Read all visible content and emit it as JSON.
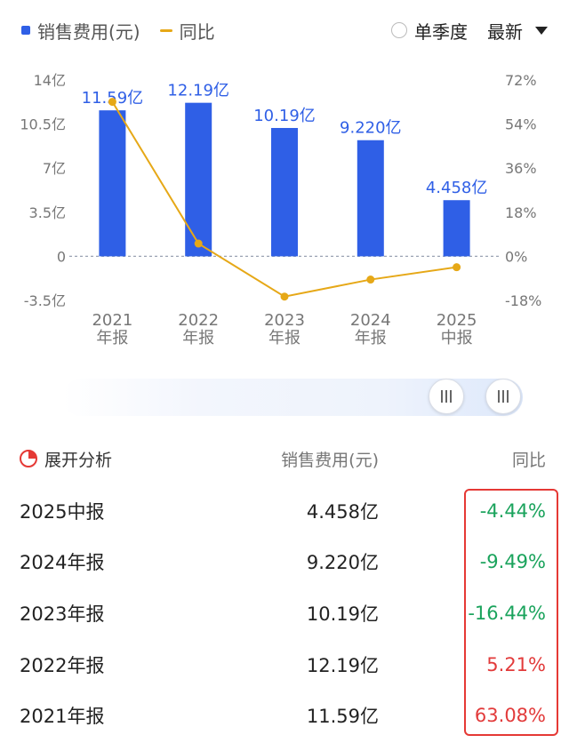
{
  "legend": {
    "bar_label": "销售费用(元)",
    "line_label": "同比"
  },
  "controls": {
    "quarter_label": "单季度",
    "latest_label": "最新"
  },
  "chart_data": {
    "type": "bar",
    "categories": [
      "2021\n年报",
      "2022\n年报",
      "2023\n年报",
      "2024\n年报",
      "2025\n中报"
    ],
    "series": [
      {
        "name": "销售费用(元)",
        "type": "bar",
        "values": [
          11.59,
          12.19,
          10.19,
          9.22,
          4.458
        ],
        "labels": [
          "11.59亿",
          "12.19亿",
          "10.19亿",
          "9.220亿",
          "4.458亿"
        ]
      },
      {
        "name": "同比",
        "type": "line",
        "values": [
          63.08,
          5.21,
          -16.44,
          -9.49,
          -4.44
        ]
      }
    ],
    "y_left": {
      "ticks": [
        "14亿",
        "10.5亿",
        "7亿",
        "3.5亿",
        "0",
        "-3.5亿"
      ],
      "values": [
        14,
        10.5,
        7,
        3.5,
        0,
        -3.5
      ],
      "ylim": [
        -3.5,
        14
      ]
    },
    "y_right": {
      "ticks": [
        "72%",
        "54%",
        "36%",
        "18%",
        "0%",
        "-18%"
      ],
      "values": [
        72,
        54,
        36,
        18,
        0,
        -18
      ],
      "ylim": [
        -18,
        72
      ]
    },
    "colors": {
      "bar": "#2f5fe6",
      "line": "#e6a817"
    }
  },
  "table": {
    "header": {
      "analysis": "展开分析",
      "col_value": "销售费用(元)",
      "col_yoy": "同比"
    },
    "rows": [
      {
        "period": "2025中报",
        "value": "4.458亿",
        "yoy": "-4.44%",
        "sign": "neg"
      },
      {
        "period": "2024年报",
        "value": "9.220亿",
        "yoy": "-9.49%",
        "sign": "neg"
      },
      {
        "period": "2023年报",
        "value": "10.19亿",
        "yoy": "-16.44%",
        "sign": "neg"
      },
      {
        "period": "2022年报",
        "value": "12.19亿",
        "yoy": "5.21%",
        "sign": "pos"
      },
      {
        "period": "2021年报",
        "value": "11.59亿",
        "yoy": "63.08%",
        "sign": "pos"
      }
    ]
  }
}
